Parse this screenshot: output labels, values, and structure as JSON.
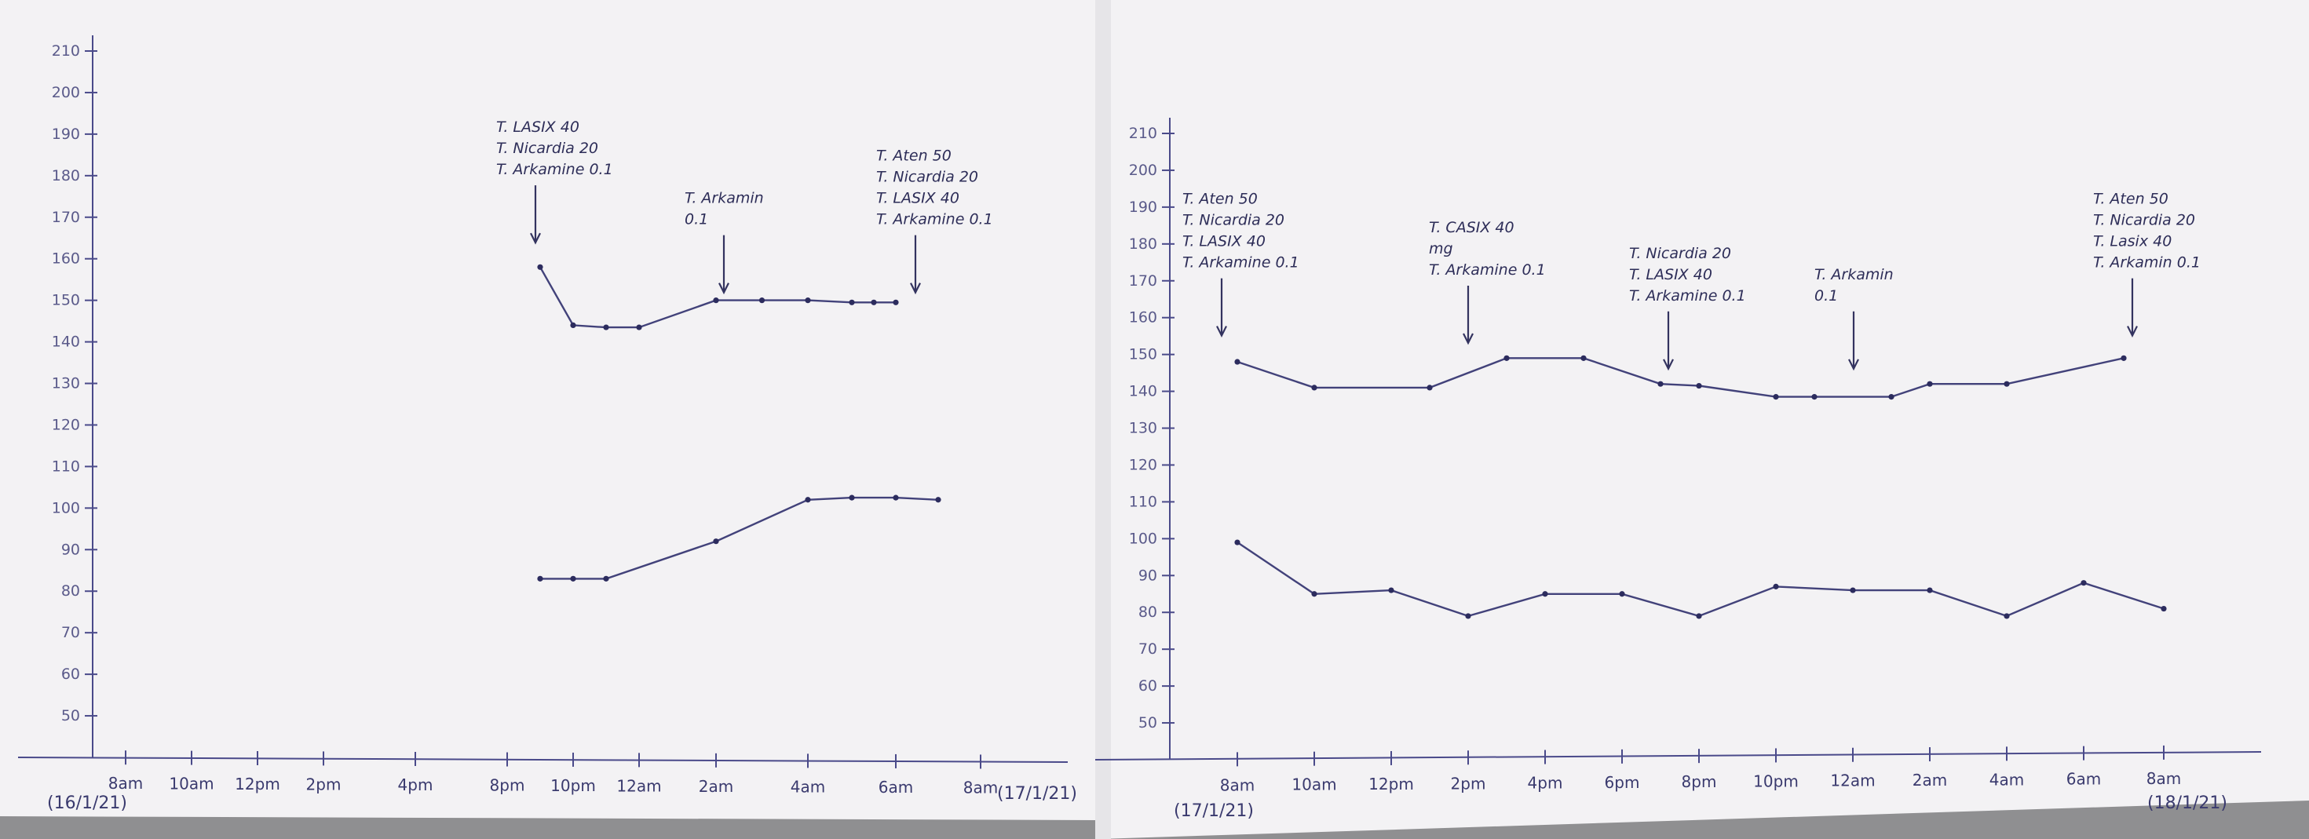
{
  "chart_data": [
    {
      "type": "line",
      "title": "",
      "xlabel": "",
      "ylabel": "",
      "ylim": [
        40,
        210
      ],
      "y_ticks": [
        "50",
        "60",
        "70",
        "80",
        "90",
        "100",
        "110",
        "120",
        "130",
        "140",
        "150",
        "160",
        "170",
        "180",
        "190",
        "200",
        "210"
      ],
      "categories": [
        "8am",
        "10am",
        "12pm",
        "2pm",
        "4pm",
        "8pm",
        "10pm",
        "12am",
        "2am",
        "4am",
        "6am",
        "8am"
      ],
      "start_date": "(16/1/21)",
      "end_date": "(17/1/21)",
      "grid": false,
      "legend": "none",
      "series": [
        {
          "x": [
            "9pm",
            "10pm",
            "11pm",
            "12am",
            "2am",
            "3am",
            "4am",
            "5am",
            "5:30am",
            "6am"
          ],
          "values": [
            158,
            144,
            143.5,
            143.5,
            150,
            150,
            150,
            149.5,
            149.5,
            149.5
          ]
        },
        {
          "x": [
            "9pm",
            "10pm",
            "11pm",
            "2am",
            "4am",
            "5am",
            "6am",
            "7am"
          ],
          "values": [
            83,
            83,
            83,
            92,
            102,
            102.5,
            102.5,
            102
          ]
        }
      ],
      "annotations": [
        {
          "at": "9pm",
          "lines": [
            "T. LASIX 40",
            "T. Nicardia 20",
            "T. Arkamine 0.1"
          ]
        },
        {
          "at": "2am",
          "lines": [
            "T. Arkamin",
            "0.1"
          ]
        },
        {
          "at": "6am",
          "lines": [
            "T. Aten 50",
            "T. Nicardia 20",
            "T. LASIX 40",
            "T. Arkamine 0.1"
          ]
        }
      ]
    },
    {
      "type": "line",
      "title": "",
      "xlabel": "",
      "ylabel": "",
      "ylim": [
        40,
        210
      ],
      "y_ticks": [
        "50",
        "60",
        "70",
        "80",
        "90",
        "100",
        "110",
        "120",
        "130",
        "140",
        "150",
        "160",
        "170",
        "180",
        "190",
        "200",
        "210"
      ],
      "categories": [
        "8am",
        "10am",
        "12pm",
        "2pm",
        "4pm",
        "6pm",
        "8pm",
        "10pm",
        "12am",
        "2am",
        "4am",
        "6am",
        "8am"
      ],
      "start_date": "(17/1/21)",
      "end_date": "(18/1/21)",
      "grid": false,
      "legend": "none",
      "series": [
        {
          "x": [
            "8am",
            "10am",
            "1pm",
            "3pm",
            "5pm",
            "7pm",
            "8pm",
            "10pm",
            "11pm",
            "1am",
            "2am",
            "4am",
            "7am"
          ],
          "values": [
            148,
            141,
            141,
            149,
            149,
            142,
            141.5,
            138.5,
            138.5,
            138.5,
            142,
            142,
            149
          ]
        },
        {
          "x": [
            "8am",
            "10am",
            "12pm",
            "2pm",
            "4pm",
            "6pm",
            "8pm",
            "10pm",
            "12am",
            "2am",
            "4am",
            "6am",
            "8am"
          ],
          "values": [
            99,
            85,
            86,
            79,
            85,
            85,
            79,
            87,
            86,
            86,
            79,
            88,
            81
          ]
        }
      ],
      "annotations": [
        {
          "at": "8am",
          "lines": [
            "T. Aten 50",
            "T. Nicardia 20",
            "T. LASIX 40",
            "T. Arkamine 0.1"
          ]
        },
        {
          "at": "2pm",
          "lines": [
            "T. CASIX 40",
            "mg",
            "T. Arkamine 0.1"
          ]
        },
        {
          "at": "8pm",
          "lines": [
            "T. Nicardia 20",
            "T. LASIX 40",
            "T. Arkamine 0.1"
          ]
        },
        {
          "at": "12am",
          "lines": [
            "T. Arkamin",
            "0.1"
          ]
        },
        {
          "at": "8am",
          "lines": [
            "T. Aten 50",
            "T. Nicardia 20",
            "T. Lasix 40",
            "T. Arkamin 0.1"
          ]
        }
      ]
    }
  ]
}
